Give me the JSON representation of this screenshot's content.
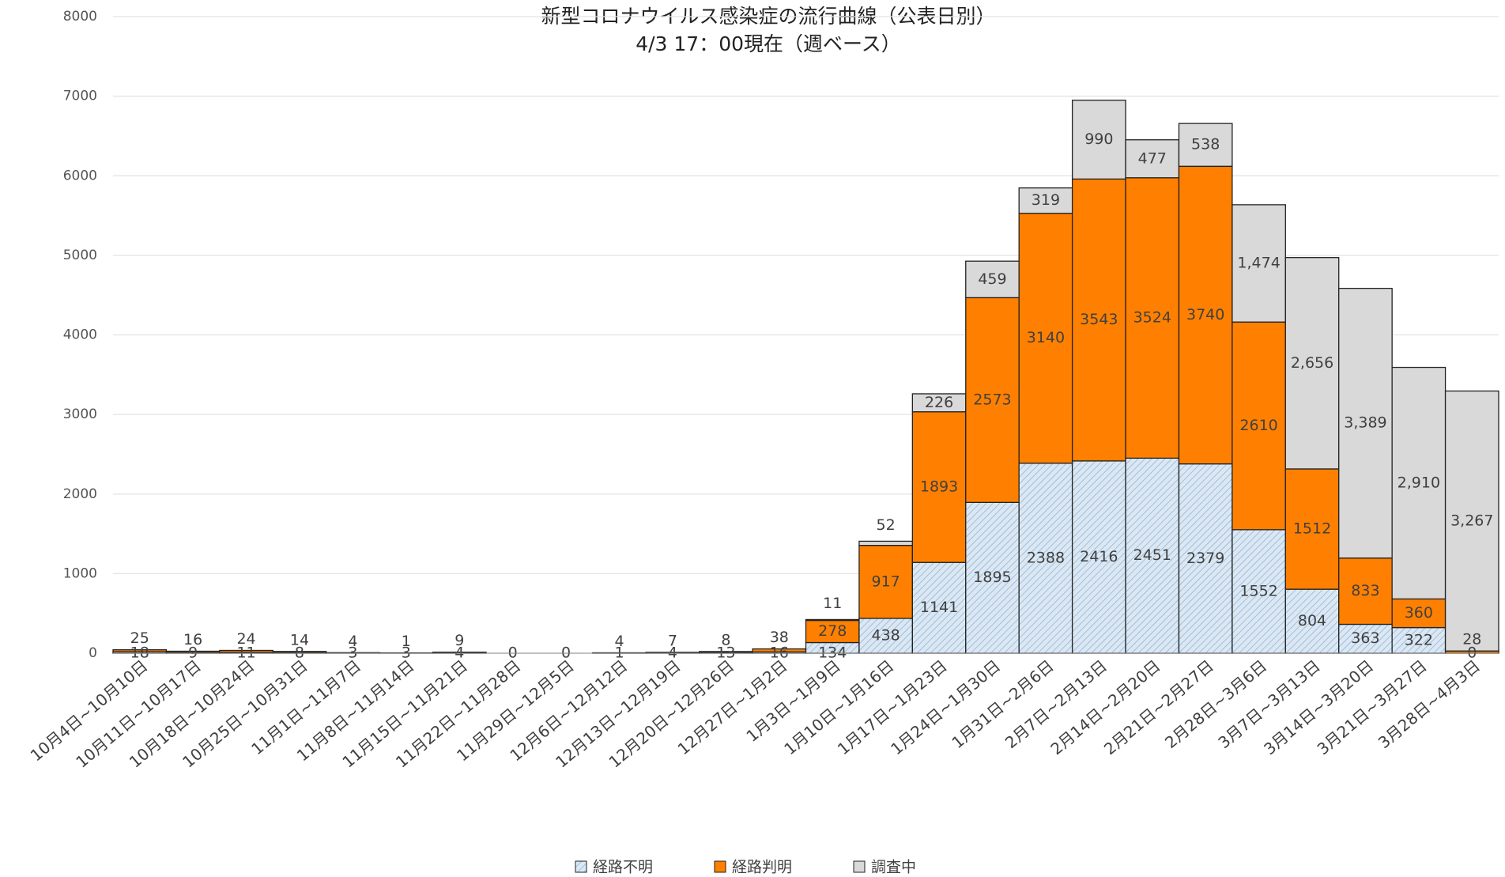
{
  "chart_data": {
    "type": "stacked-bar",
    "title": "新型コロナウイルス感染症の流行曲線（公表日別）",
    "subtitle": "4/3 17：00現在（週ベース）",
    "categories": [
      "10月4日~10月10日",
      "10月11日~10月17日",
      "10月18日~10月24日",
      "10月25日~10月31日",
      "11月1日~11月7日",
      "11月8日~11月14日",
      "11月15日~11月21日",
      "11月22日~11月28日",
      "11月29日~12月5日",
      "12月6日~12月12日",
      "12月13日~12月19日",
      "12月20日~12月26日",
      "12月27日~1月2日",
      "1月3日~1月9日",
      "1月10日~1月16日",
      "1月17日~1月23日",
      "1月24日~1月30日",
      "1月31日~2月6日",
      "2月7日~2月13日",
      "2月14日~2月20日",
      "2月21日~2月27日",
      "2月28日~3月6日",
      "3月7日~3月13日",
      "3月14日~3月20日",
      "3月21日~3月27日",
      "3月28日~4月3日"
    ],
    "series": [
      {
        "name": "経路不明",
        "color": "#dbe8f4",
        "hatch": true,
        "values": [
          18,
          9,
          11,
          8,
          3,
          3,
          4,
          0,
          0,
          1,
          4,
          13,
          16,
          134,
          438,
          1141,
          1895,
          2388,
          2416,
          2451,
          2379,
          1552,
          804,
          363,
          322,
          0
        ]
      },
      {
        "name": "経路判明",
        "color": "#ff8000",
        "hatch": false,
        "values": [
          25,
          16,
          24,
          14,
          4,
          1,
          9,
          null,
          null,
          4,
          7,
          8,
          38,
          278,
          917,
          1893,
          2573,
          3140,
          3543,
          3524,
          3740,
          2610,
          1512,
          833,
          360,
          28
        ]
      },
      {
        "name": "調査中",
        "color": "#d9d9d9",
        "hatch": false,
        "values": [
          null,
          null,
          null,
          null,
          null,
          null,
          null,
          null,
          null,
          null,
          null,
          null,
          null,
          11,
          52,
          226,
          459,
          319,
          990,
          477,
          538,
          1474,
          2656,
          3389,
          2910,
          3267
        ],
        "value_labels": [
          null,
          null,
          null,
          null,
          null,
          null,
          null,
          null,
          null,
          null,
          null,
          null,
          null,
          "11",
          "52",
          "226",
          "459",
          "319",
          "990",
          "477",
          "538",
          "1,474",
          "2,656",
          "3,389",
          "2,910",
          "3,267"
        ]
      }
    ],
    "ylim": [
      0,
      8000
    ],
    "yticks": [
      0,
      1000,
      2000,
      3000,
      4000,
      5000,
      6000,
      7000,
      8000
    ],
    "grid": true,
    "legend": "bottom"
  }
}
